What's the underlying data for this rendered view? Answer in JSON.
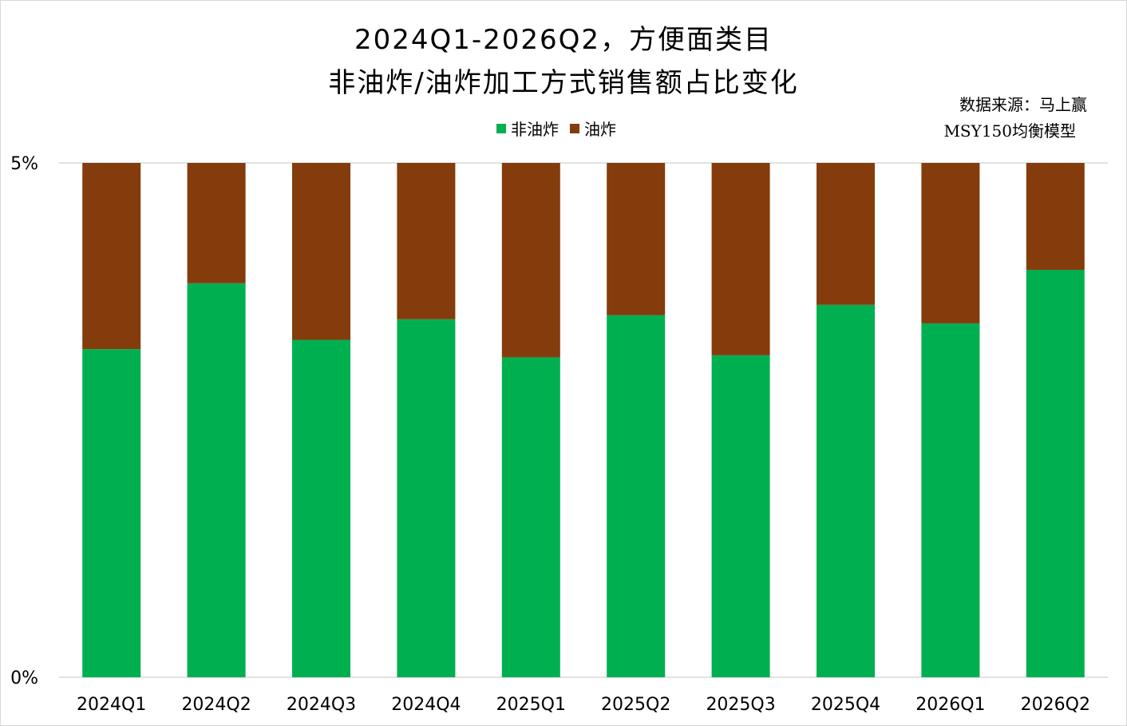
{
  "title_line1": "2024Q1-2026Q2，方便面类目",
  "title_line2": "非油炸/油炸加工方式销售额占比变化",
  "source_line1": "数据来源：马上赢",
  "source_line2": "MSY150均衡模型",
  "colors": {
    "non_fried": "#00b050",
    "fried": "#843c0c",
    "gridline": "#d9d9d9"
  },
  "chart_data": {
    "type": "bar",
    "stacked": true,
    "categories": [
      "2024Q1",
      "2024Q2",
      "2024Q3",
      "2024Q4",
      "2025Q1",
      "2025Q2",
      "2025Q3",
      "2025Q4",
      "2026Q1",
      "2026Q2"
    ],
    "series": [
      {
        "name": "非油炸",
        "color": "#00b050",
        "values": [
          3.19,
          3.83,
          3.28,
          3.48,
          3.11,
          3.52,
          3.13,
          3.62,
          3.44,
          3.96
        ]
      },
      {
        "name": "油炸",
        "color": "#843c0c",
        "values": [
          1.81,
          1.17,
          1.72,
          1.52,
          1.89,
          1.48,
          1.87,
          1.38,
          1.56,
          1.04
        ]
      }
    ],
    "yticks": [
      "0%",
      "5%"
    ],
    "ylim": [
      0,
      5
    ],
    "grid": true,
    "legend_position": "top"
  }
}
